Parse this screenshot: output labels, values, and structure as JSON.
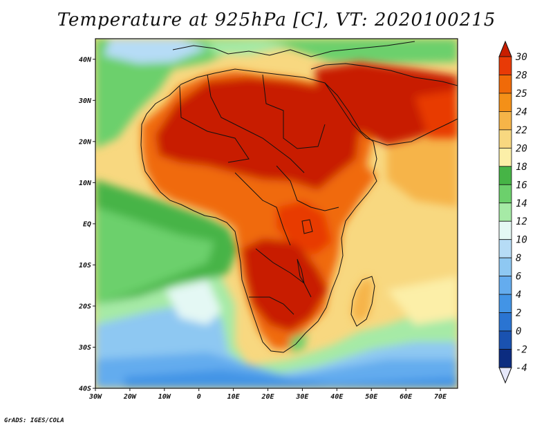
{
  "title": "Temperature at 925hPa [C], VT: 2020100215",
  "credit": "GrADS: IGES/COLA",
  "map": {
    "lon_ticks": [
      "30W",
      "20W",
      "10W",
      "0",
      "10E",
      "20E",
      "30E",
      "40E",
      "50E",
      "60E",
      "70E"
    ],
    "lat_ticks": [
      "40N",
      "30N",
      "20N",
      "10N",
      "EQ",
      "10S",
      "20S",
      "30S",
      "40S"
    ],
    "lon_range": [
      -30,
      75
    ],
    "lat_range": [
      -40,
      45
    ]
  },
  "colorbar": {
    "labels": [
      "30",
      "28",
      "25",
      "24",
      "22",
      "20",
      "18",
      "16",
      "14",
      "12",
      "10",
      "8",
      "6",
      "4",
      "2",
      "0",
      "-2",
      "-4"
    ],
    "colors": [
      "#c81e00",
      "#e83a06",
      "#f06a08",
      "#f49018",
      "#f6b448",
      "#f8d880",
      "#fcefa8",
      "#46b446",
      "#6cd06c",
      "#a6eaa6",
      "#e4f8f4",
      "#b6dcf6",
      "#8ec8f2",
      "#64acee",
      "#4294e6",
      "#2a74d2",
      "#1a52b0",
      "#0c2c80",
      "#081a50"
    ],
    "top_color": "#c81e00",
    "bottom_color": "#e6e8fa"
  }
}
